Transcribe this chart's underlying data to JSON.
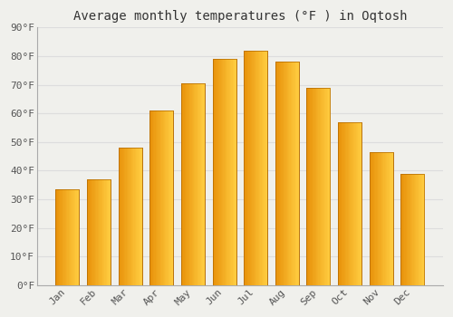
{
  "title": "Average monthly temperatures (°F ) in Oqtosh",
  "months": [
    "Jan",
    "Feb",
    "Mar",
    "Apr",
    "May",
    "Jun",
    "Jul",
    "Aug",
    "Sep",
    "Oct",
    "Nov",
    "Dec"
  ],
  "values": [
    33.5,
    37.0,
    48.0,
    61.0,
    70.5,
    79.0,
    82.0,
    78.0,
    69.0,
    57.0,
    46.5,
    39.0
  ],
  "bar_color_left": "#E8920A",
  "bar_color_right": "#FFC830",
  "background_color": "#F0F0EC",
  "grid_color": "#DDDDDD",
  "ylim": [
    0,
    90
  ],
  "yticks": [
    0,
    10,
    20,
    30,
    40,
    50,
    60,
    70,
    80,
    90
  ],
  "ylabel_format": "°F",
  "title_fontsize": 10,
  "tick_fontsize": 8,
  "font_family": "monospace"
}
